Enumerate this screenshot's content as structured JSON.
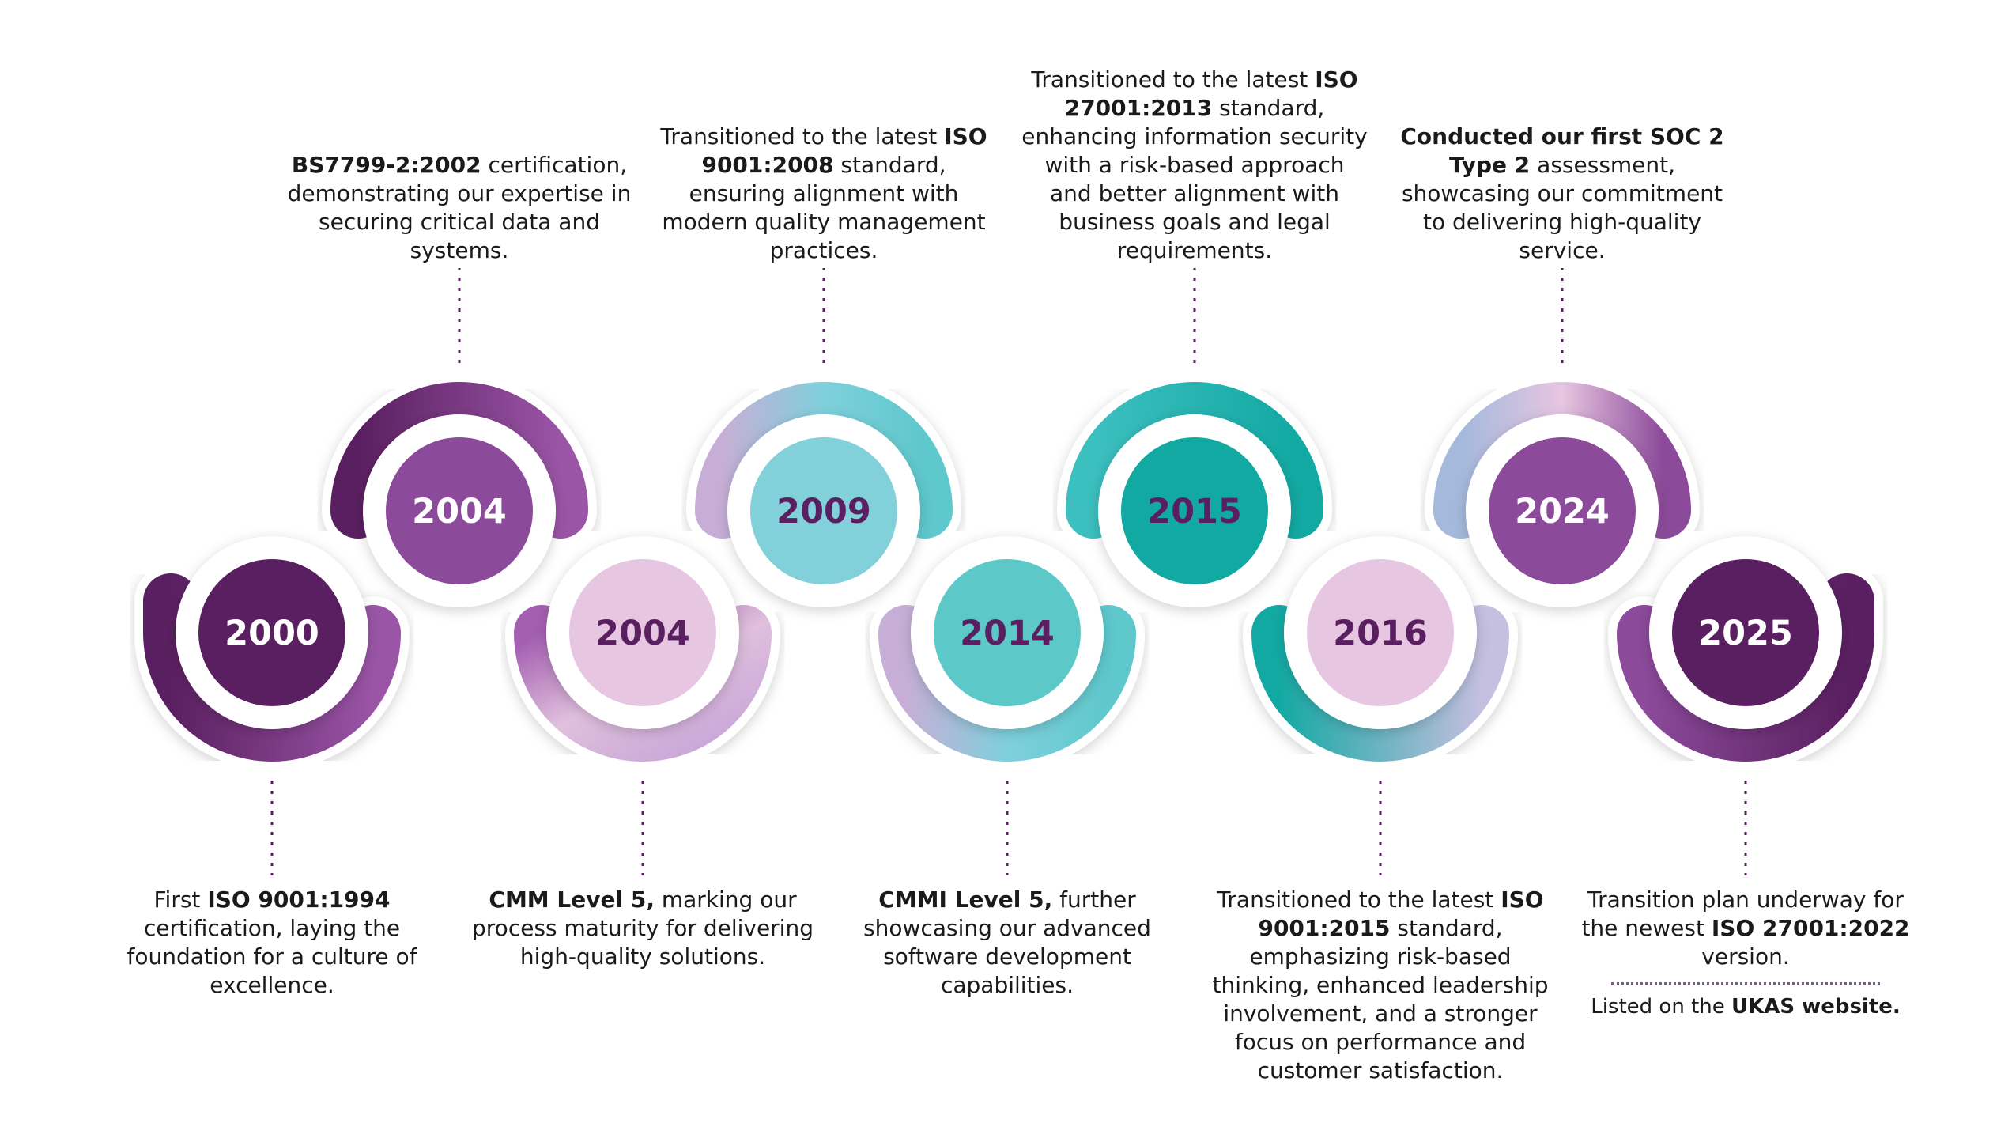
{
  "milestones": [
    {
      "year": "2000",
      "pos": "bottom",
      "bold_lead": "",
      "lead": "First ",
      "bold": "ISO 9001:1994",
      "rest": " certification, laying the foundation for a culture of excellence."
    },
    {
      "year": "2004",
      "pos": "top",
      "bold_lead": "BS7799-2:2002",
      "lead": "",
      "bold": "",
      "rest": " certification, demonstrating our expertise in securing critical data and systems."
    },
    {
      "year": "2004",
      "pos": "bottom",
      "bold_lead": "CMM Level 5,",
      "lead": "",
      "bold": "",
      "rest": " marking our process maturity for delivering high-quality solutions."
    },
    {
      "year": "2009",
      "pos": "top",
      "bold_lead": "",
      "lead": "Transitioned to the latest ",
      "bold": "ISO 9001:2008",
      "rest": " standard, ensuring alignment with modern quality management practices."
    },
    {
      "year": "2014",
      "pos": "bottom",
      "bold_lead": "CMMI Level 5,",
      "lead": "",
      "bold": "",
      "rest": " further showcasing our advanced software development capabilities."
    },
    {
      "year": "2015",
      "pos": "top",
      "bold_lead": "",
      "lead": "Transitioned to the latest ",
      "bold": "ISO 27001:2013",
      "rest": " standard, enhancing information security with a risk-based approach and better alignment with business goals and legal requirements."
    },
    {
      "year": "2016",
      "pos": "bottom",
      "bold_lead": "",
      "lead": "Transitioned to the latest ",
      "bold": "ISO 9001:2015",
      "rest": " standard, emphasizing risk-based thinking, enhanced leadership involvement, and a stronger focus on performance and customer satisfaction."
    },
    {
      "year": "2024",
      "pos": "top",
      "bold_lead": "Conducted our first SOC 2 Type 2",
      "lead": "",
      "bold": "",
      "rest": " assessment, showcasing our commitment to delivering high-quality service."
    },
    {
      "year": "2025",
      "pos": "bottom",
      "bold_lead": "",
      "lead": "Transition plan underway for the newest ",
      "bold": "ISO 27001:2022",
      "rest": " version."
    }
  ],
  "ukas_note": {
    "lead": "Listed on the ",
    "bold": "UKAS website."
  },
  "colors": {
    "dark_purple": "#5a1f60",
    "purple": "#8c4a9a",
    "light_pink": "#e6c6e0",
    "light_teal": "#82d0da",
    "teal": "#5cc8c8",
    "dark_teal": "#13a9a3",
    "year_light": "#ffffff",
    "year_dark": "#5a1f60",
    "dotted": "#5a1f60"
  }
}
